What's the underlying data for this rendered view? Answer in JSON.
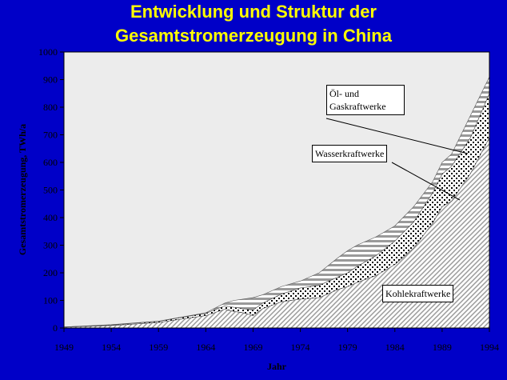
{
  "chart_data": {
    "type": "stacked-area",
    "title": [
      "Entwicklung und Struktur der",
      "Gesamtstromerzeugung in China"
    ],
    "x_label": "Jahr",
    "y_label": "Gesamtstromerzeugung, TWh/a",
    "x": [
      1949,
      1954,
      1959,
      1964,
      1966,
      1967,
      1968,
      1969,
      1970,
      1972,
      1974,
      1976,
      1978,
      1979,
      1980,
      1982,
      1984,
      1986,
      1988,
      1989,
      1990,
      1992,
      1994
    ],
    "series": [
      {
        "name": "Kohlekraftwerke",
        "color": "#9a9a9a",
        "fill_pattern": "diagonal",
        "values": [
          3,
          9,
          20,
          45,
          68,
          60,
          55,
          45,
          70,
          95,
          105,
          110,
          140,
          150,
          165,
          190,
          230,
          290,
          380,
          440,
          460,
          560,
          690
        ]
      },
      {
        "name": "Wasserkraftwerke",
        "color": "#000000",
        "fill_pattern": "dots",
        "values": [
          1,
          2,
          4,
          8,
          12,
          15,
          15,
          20,
          20,
          28,
          40,
          45,
          45,
          50,
          58,
          72,
          85,
          95,
          110,
          118,
          126,
          130,
          160
        ]
      },
      {
        "name": "Öl- und Gaskraftwerke",
        "color": "#9a9a9a",
        "fill_pattern": "horizontal",
        "values": [
          0,
          1,
          1,
          2,
          10,
          25,
          35,
          45,
          30,
          27,
          25,
          45,
          70,
          80,
          77,
          68,
          55,
          55,
          40,
          42,
          44,
          80,
          60
        ]
      }
    ],
    "xlim": [
      1949,
      1994
    ],
    "xticks": [
      1949,
      1954,
      1959,
      1964,
      1969,
      1974,
      1979,
      1984,
      1989,
      1994
    ],
    "ylim": [
      0,
      1000
    ],
    "yticks": [
      0,
      100,
      200,
      300,
      400,
      500,
      600,
      700,
      800,
      900,
      1000
    ]
  }
}
